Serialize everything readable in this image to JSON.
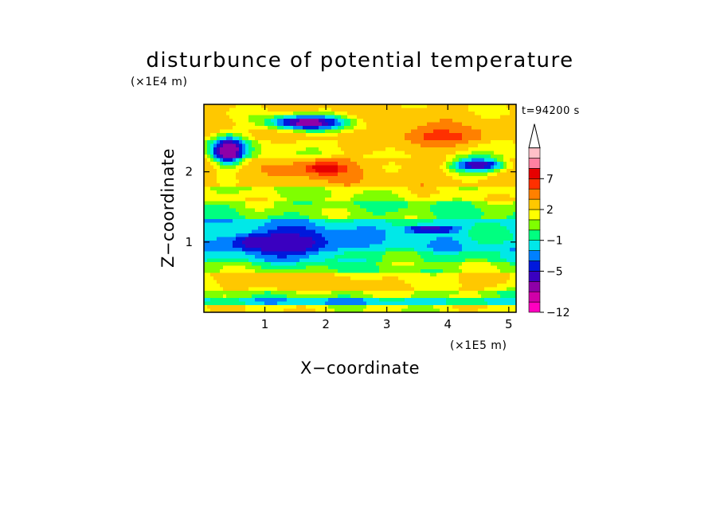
{
  "chart_data": {
    "type": "heatmap",
    "title": "disturbunce of potential temperature",
    "xlabel": "X−coordinate",
    "ylabel": "Z−coordinate",
    "x_unit": "(×1E5 m)",
    "y_unit": "(×1E4 m)",
    "time_label": "t=94200 s",
    "xlim": [
      0,
      5.12
    ],
    "ylim": [
      0,
      2.96
    ],
    "x_ticks": [
      "1",
      "2",
      "3",
      "4",
      "5"
    ],
    "y_ticks": [
      "1",
      "2"
    ],
    "colorbar": {
      "tick_labels": [
        "−12",
        "−5",
        "−1",
        "2",
        "7"
      ],
      "colors": [
        "#ff00bf",
        "#d000a8",
        "#8e00a8",
        "#3a00c0",
        "#0018dc",
        "#0080ff",
        "#00e8e8",
        "#00ff80",
        "#7fff00",
        "#ffff00",
        "#ffc800",
        "#ff8000",
        "#ff3000",
        "#e60000",
        "#ff80a0",
        "#ffc0c8"
      ],
      "extend": "max"
    },
    "field_features": [
      {
        "x": 1.4,
        "z": 0.98,
        "rx": 1.05,
        "rz": 0.26,
        "value": -5
      },
      {
        "x": 0.9,
        "z": 1.0,
        "rx": 0.55,
        "rz": 0.12,
        "value": -5
      },
      {
        "x": 3.7,
        "z": 1.18,
        "rx": 0.55,
        "rz": 0.07,
        "value": -5
      },
      {
        "x": 4.5,
        "z": 2.1,
        "rx": 0.6,
        "rz": 0.14,
        "value": -5
      },
      {
        "x": 2.0,
        "z": 2.05,
        "rx": 0.6,
        "rz": 0.16,
        "value": 8
      },
      {
        "x": 3.9,
        "z": 2.5,
        "rx": 0.9,
        "rz": 0.2,
        "value": 7
      },
      {
        "x": 0.4,
        "z": 2.3,
        "rx": 0.35,
        "rz": 0.25,
        "value": -7
      },
      {
        "x": 1.7,
        "z": 2.7,
        "rx": 0.8,
        "rz": 0.14,
        "value": -6
      },
      {
        "x": 1.5,
        "z": 0.42,
        "rx": 1.6,
        "rz": 0.14,
        "value": 3
      },
      {
        "x": 3.0,
        "z": 0.42,
        "rx": 1.0,
        "rz": 0.12,
        "value": 2
      },
      {
        "x": 4.6,
        "z": 0.45,
        "rx": 0.5,
        "rz": 0.14,
        "value": 3
      }
    ]
  }
}
